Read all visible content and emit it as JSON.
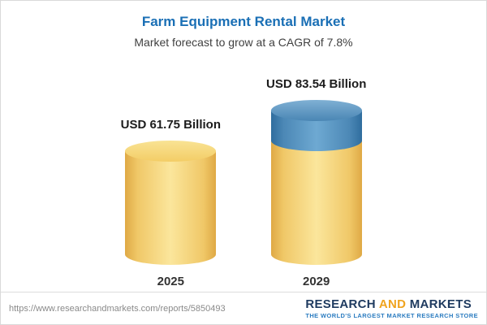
{
  "chart_data": {
    "type": "bar",
    "style": "3d-cylinder",
    "title": "Farm Equipment Rental Market",
    "subtitle": "Market forecast to grow at a CAGR of 7.8%",
    "cagr": "7.8%",
    "unit": "USD Billion",
    "categories": [
      "2025",
      "2029"
    ],
    "values": [
      61.75,
      83.54
    ],
    "value_labels": [
      "USD 61.75 Billion",
      "USD 83.54 Billion"
    ],
    "growth_segment": {
      "applies_to": "2029",
      "value": 21.79
    },
    "colors": {
      "base_cylinder": "#f2cc69",
      "growth_cylinder": "#4c89b8",
      "title": "#1a6fb5"
    },
    "legend": "none",
    "grid": false,
    "xlabel": "",
    "ylabel": ""
  },
  "footer": {
    "url": "https://www.researchandmarkets.com/reports/5850493",
    "logo": {
      "research": "RESEARCH",
      "and": "AND",
      "markets": "MARKETS",
      "tagline": "THE WORLD'S LARGEST MARKET RESEARCH STORE"
    }
  }
}
